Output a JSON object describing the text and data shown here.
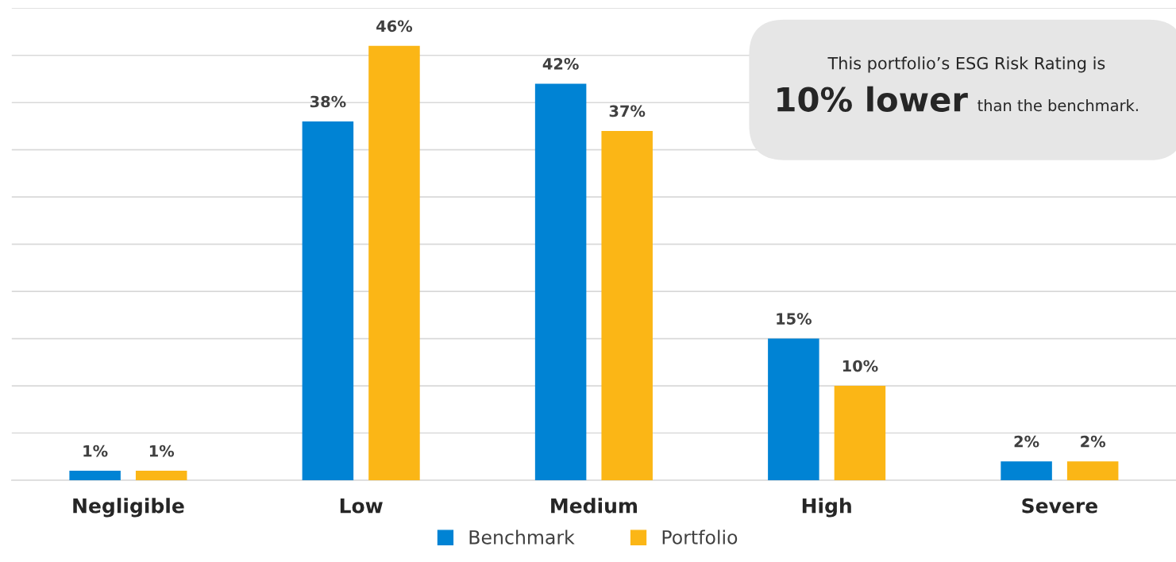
{
  "chart_data": {
    "type": "bar",
    "categories": [
      "Negligible",
      "Low",
      "Medium",
      "High",
      "Severe"
    ],
    "series": [
      {
        "name": "Benchmark",
        "color": "#0083d4",
        "values": [
          1,
          38,
          42,
          15,
          2
        ],
        "value_labels": [
          "1%",
          "38%",
          "42%",
          "15%",
          "2%"
        ]
      },
      {
        "name": "Portfolio",
        "color": "#fbb616",
        "values": [
          1,
          46,
          37,
          10,
          2
        ],
        "value_labels": [
          "1%",
          "46%",
          "37%",
          "10%",
          "2%"
        ]
      }
    ],
    "ylim": [
      0,
      50
    ],
    "yticks": [
      {
        "value": 0,
        "label": null
      },
      {
        "value": 5,
        "label": null
      },
      {
        "value": 10,
        "label": null
      },
      {
        "value": 15,
        "label": null
      },
      {
        "value": 20,
        "label": null
      },
      {
        "value": 25,
        "label": null
      },
      {
        "value": 30,
        "label": null
      },
      {
        "value": 35,
        "label": null
      },
      {
        "value": 40,
        "label": null
      },
      {
        "value": 45,
        "label": null
      },
      {
        "value": 50,
        "label": null
      }
    ],
    "tick_labels": "x",
    "grid": "y",
    "legend": "bottom",
    "annotations": [
      "This portfolio’s ESG Risk Rating is",
      "10% lower",
      "than the benchmark."
    ]
  }
}
